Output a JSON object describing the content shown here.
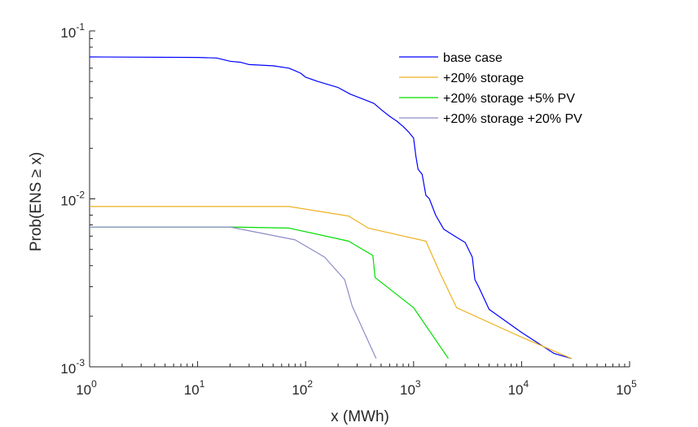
{
  "chart_data": {
    "type": "line",
    "title": "",
    "xlabel": "x (MWh)",
    "ylabel": "Prob(ENS ≥ x)",
    "xscale": "log",
    "yscale": "log",
    "xlim": [
      1,
      100000
    ],
    "ylim": [
      0.001,
      0.1
    ],
    "grid": false,
    "legend_position": "top-right",
    "x_ticks": [
      {
        "base": "10",
        "exp": "0",
        "value": 1
      },
      {
        "base": "10",
        "exp": "1",
        "value": 10
      },
      {
        "base": "10",
        "exp": "2",
        "value": 100
      },
      {
        "base": "10",
        "exp": "3",
        "value": 1000
      },
      {
        "base": "10",
        "exp": "4",
        "value": 10000
      },
      {
        "base": "10",
        "exp": "5",
        "value": 100000
      }
    ],
    "y_ticks": [
      {
        "base": "10",
        "exp": "-3",
        "value": 0.001
      },
      {
        "base": "10",
        "exp": "-2",
        "value": 0.01
      },
      {
        "base": "10",
        "exp": "-1",
        "value": 0.1
      }
    ],
    "series": [
      {
        "name": "base case",
        "color": "#0000ff",
        "points": [
          [
            1,
            0.07
          ],
          [
            10,
            0.0695
          ],
          [
            15,
            0.069
          ],
          [
            20,
            0.066
          ],
          [
            25,
            0.065
          ],
          [
            30,
            0.063
          ],
          [
            50,
            0.062
          ],
          [
            70,
            0.06
          ],
          [
            80,
            0.058
          ],
          [
            90,
            0.056
          ],
          [
            100,
            0.053
          ],
          [
            130,
            0.05
          ],
          [
            200,
            0.046
          ],
          [
            260,
            0.042
          ],
          [
            350,
            0.039
          ],
          [
            430,
            0.037
          ],
          [
            500,
            0.034
          ],
          [
            600,
            0.031
          ],
          [
            700,
            0.029
          ],
          [
            800,
            0.027
          ],
          [
            900,
            0.025
          ],
          [
            1000,
            0.023
          ],
          [
            1050,
            0.018
          ],
          [
            1100,
            0.015
          ],
          [
            1200,
            0.014
          ],
          [
            1300,
            0.0105
          ],
          [
            1400,
            0.01
          ],
          [
            1600,
            0.008
          ],
          [
            1900,
            0.0066
          ],
          [
            2400,
            0.006
          ],
          [
            3000,
            0.0055
          ],
          [
            3500,
            0.0045
          ],
          [
            3700,
            0.0033
          ],
          [
            4000,
            0.003
          ],
          [
            5000,
            0.0022
          ],
          [
            10000,
            0.0016
          ],
          [
            20000,
            0.0012
          ],
          [
            29000,
            0.00112
          ]
        ]
      },
      {
        "name": "+20% storage",
        "color": "#edb120",
        "points": [
          [
            1,
            0.009
          ],
          [
            70,
            0.009
          ],
          [
            250,
            0.0079
          ],
          [
            380,
            0.0067
          ],
          [
            1300,
            0.0056
          ],
          [
            1800,
            0.0035
          ],
          [
            2500,
            0.00225
          ],
          [
            10000,
            0.0015
          ],
          [
            29000,
            0.00112
          ]
        ]
      },
      {
        "name": "+20% storage +5% PV",
        "color": "#00dd00",
        "points": [
          [
            1,
            0.0068
          ],
          [
            20,
            0.0068
          ],
          [
            70,
            0.0067
          ],
          [
            250,
            0.0056
          ],
          [
            420,
            0.0046
          ],
          [
            440,
            0.0034
          ],
          [
            1000,
            0.00225
          ],
          [
            2100,
            0.00112
          ]
        ]
      },
      {
        "name": "+20% storage +20% PV",
        "color": "#8c8cc8",
        "points": [
          [
            1,
            0.0068
          ],
          [
            20,
            0.0068
          ],
          [
            80,
            0.0057
          ],
          [
            150,
            0.0045
          ],
          [
            230,
            0.0033
          ],
          [
            270,
            0.0023
          ],
          [
            450,
            0.00112
          ]
        ]
      }
    ]
  }
}
